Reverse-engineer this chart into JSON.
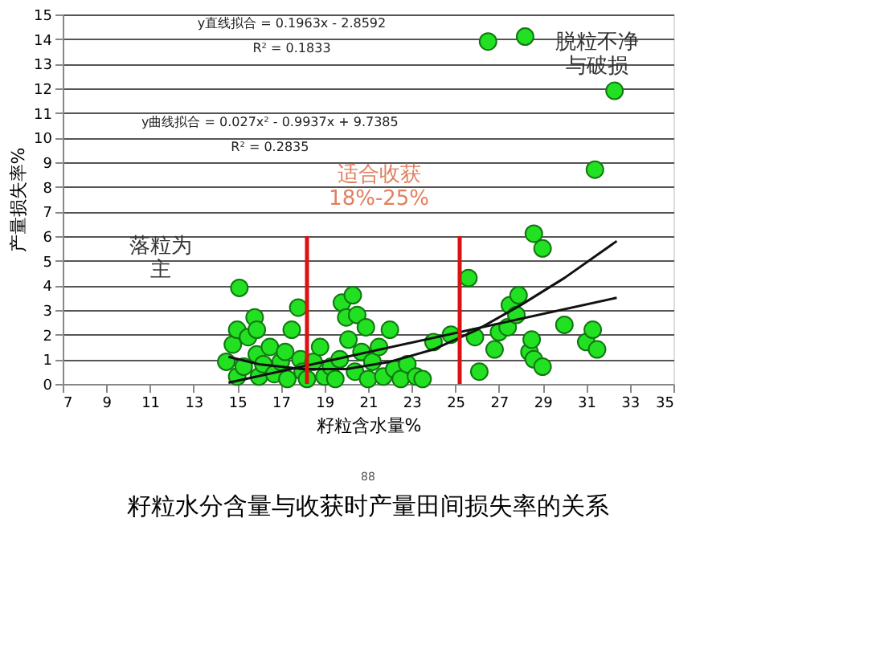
{
  "chart_data": {
    "type": "scatter",
    "title": "籽粒水分含量与收获时产量田间损失率的关系",
    "xlabel": "籽粒含水量%",
    "ylabel": "产量损失率%",
    "xlim": [
      7,
      35
    ],
    "xticks": [
      7,
      9,
      11,
      13,
      15,
      17,
      19,
      21,
      23,
      25,
      27,
      29,
      31,
      33,
      35
    ],
    "ylim": [
      0,
      15
    ],
    "yticks": [
      0,
      1,
      2,
      3,
      4,
      5,
      6,
      7,
      8,
      9,
      10,
      11,
      12,
      13,
      14,
      15
    ],
    "grid": "y",
    "marker": "circle",
    "series": [
      {
        "color": "#22e022",
        "x": [
          14.5,
          14.8,
          15,
          15,
          15.1,
          15.3,
          15.5,
          15.8,
          15.9,
          15.9,
          16,
          16.2,
          16.5,
          16.7,
          17,
          17.2,
          17.3,
          17.5,
          17.8,
          17.9,
          18.0,
          18.2,
          18.5,
          18.8,
          19,
          19.3,
          19.5,
          19.7,
          19.8,
          20,
          20.1,
          20.3,
          20.4,
          20.5,
          20.7,
          20.9,
          21,
          21.2,
          21.5,
          21.7,
          22,
          22.2,
          22.5,
          22.8,
          23.2,
          23.5,
          24,
          24.8,
          25.6,
          25.9,
          26.1,
          26.5,
          26.8,
          27,
          27.4,
          27.5,
          27.8,
          27.9,
          28.2,
          28.4,
          28.5,
          28.6,
          28.6,
          29,
          29,
          30,
          31,
          31.3,
          31.4,
          31.5,
          32.3
        ],
        "values": [
          0.9,
          1.6,
          2.2,
          0.3,
          3.9,
          0.7,
          1.9,
          2.7,
          2.2,
          1.2,
          0.3,
          0.8,
          1.5,
          0.4,
          0.9,
          1.3,
          0.2,
          2.2,
          3.1,
          1.0,
          0.5,
          0.2,
          0.9,
          1.5,
          0.3,
          0.7,
          0.2,
          1.0,
          3.3,
          2.7,
          1.8,
          3.6,
          0.5,
          2.8,
          1.3,
          2.3,
          0.2,
          0.9,
          1.5,
          0.3,
          2.2,
          0.6,
          0.2,
          0.8,
          0.3,
          0.2,
          1.7,
          2.0,
          4.3,
          1.9,
          0.5,
          13.9,
          1.4,
          2.1,
          2.3,
          3.2,
          2.8,
          3.6,
          14.1,
          1.3,
          1.8,
          1.0,
          6.1,
          0.7,
          5.5,
          2.4,
          1.7,
          2.2,
          8.7,
          1.4,
          11.9
        ]
      },
      {
        "type": "line",
        "color": "#111111",
        "marker": "none",
        "x": [
          14.6,
          32.4
        ],
        "values": [
          0.05,
          3.5
        ]
      },
      {
        "type": "line",
        "color": "#111111",
        "marker": "none",
        "x": [
          14.6,
          16,
          18,
          20,
          22,
          24,
          26,
          28,
          30,
          32.4
        ],
        "values": [
          1.1,
          0.8,
          0.6,
          0.6,
          0.9,
          1.4,
          2.2,
          3.2,
          4.3,
          5.8
        ]
      }
    ],
    "ref_lines": [
      {
        "axis": "x",
        "value": 18.2,
        "color": "#dd1111"
      },
      {
        "axis": "x",
        "value": 25.2,
        "color": "#dd1111"
      }
    ],
    "annotations": [
      "y直线拟合 = 0.1963x - 2.8592",
      "R² = 0.1833",
      "y曲线拟合 = 0.027x² - 0.9937x + 9.7385",
      "R² = 0.2835",
      "落粒为主",
      "适合收获\n18%-25%",
      "脱粒不净与破损",
      "88"
    ]
  }
}
